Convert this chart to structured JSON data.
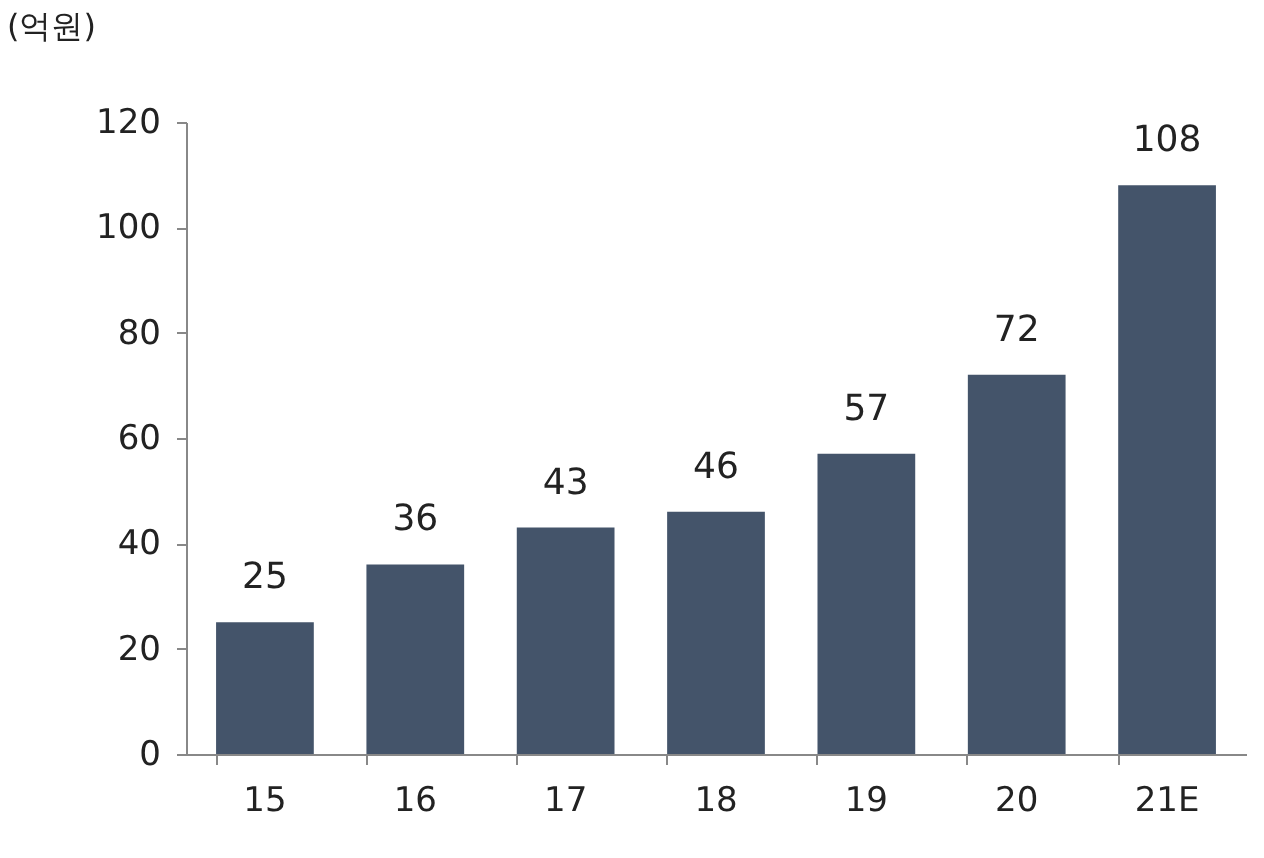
{
  "chart_data": {
    "type": "bar",
    "ylabel": "(억원)",
    "categories": [
      "15",
      "16",
      "17",
      "18",
      "19",
      "20",
      "21E"
    ],
    "values": [
      25,
      36,
      43,
      46,
      57,
      72,
      108
    ],
    "color": "#44546a",
    "ylim": [
      0,
      120
    ],
    "yticks": [
      0,
      20,
      40,
      60,
      80,
      100,
      120
    ],
    "grid": false,
    "data_labels": true
  }
}
